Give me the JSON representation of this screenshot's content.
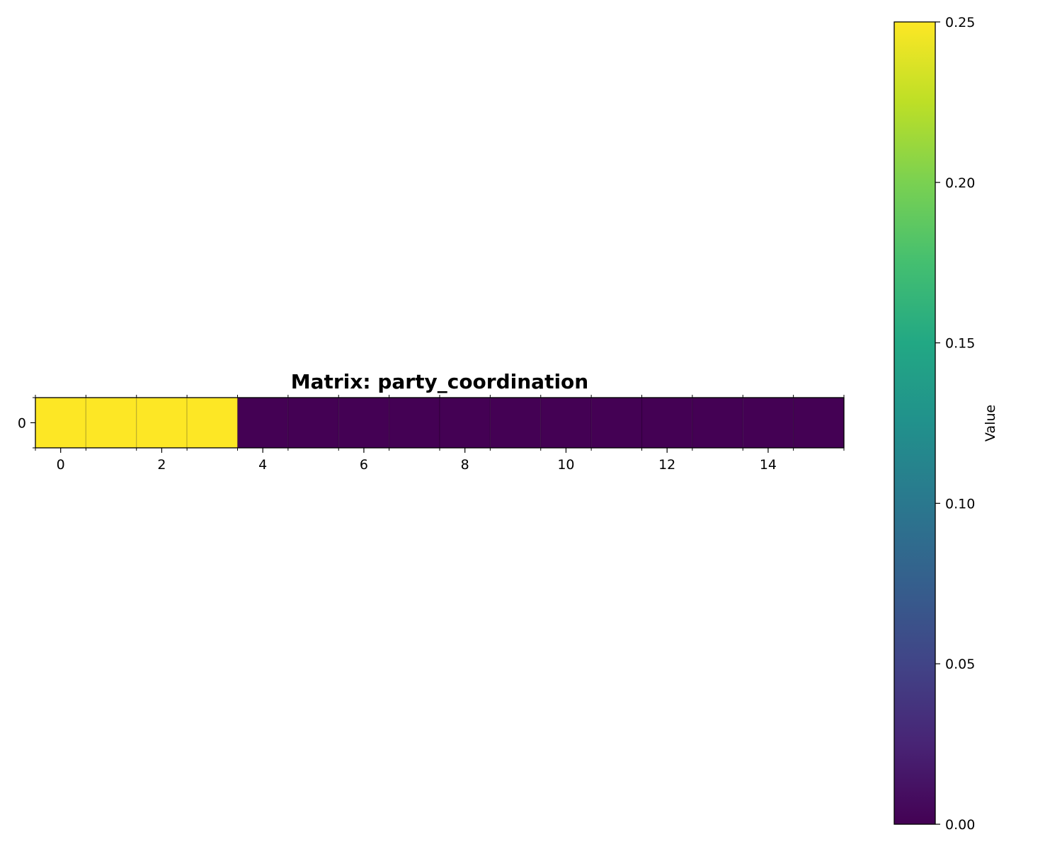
{
  "chart_data": {
    "type": "heatmap",
    "title": "Matrix: party_coordination",
    "rows": 1,
    "cols": 16,
    "values": [
      [
        0.25,
        0.25,
        0.25,
        0.25,
        0,
        0,
        0,
        0,
        0,
        0,
        0,
        0,
        0,
        0,
        0,
        0
      ]
    ],
    "x_tick_labels": [
      "0",
      "2",
      "4",
      "6",
      "8",
      "10",
      "12",
      "14"
    ],
    "x_tick_values": [
      0,
      2,
      4,
      6,
      8,
      10,
      12,
      14
    ],
    "y_tick_labels": [
      "0"
    ],
    "y_tick_values": [
      0
    ],
    "colorbar": {
      "label": "Value",
      "colormap": "viridis",
      "vmin": 0.0,
      "vmax": 0.25,
      "tick_values": [
        0.0,
        0.05,
        0.1,
        0.15,
        0.2,
        0.25
      ],
      "tick_labels": [
        "0.00",
        "0.05",
        "0.10",
        "0.15",
        "0.20",
        "0.25"
      ]
    },
    "grid": true,
    "colors": {
      "high": "#fde725",
      "low": "#440154"
    }
  }
}
